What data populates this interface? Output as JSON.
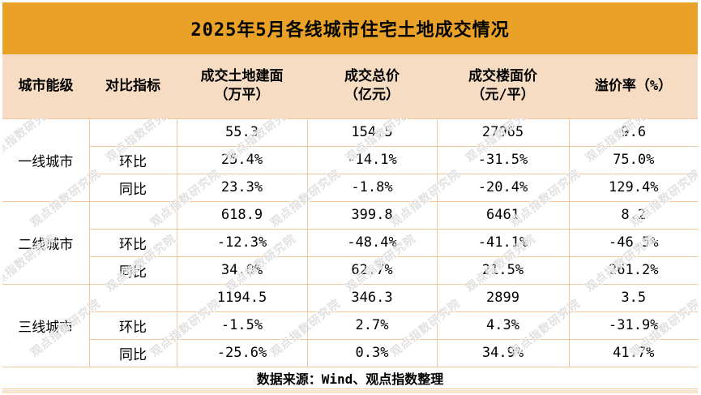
{
  "title": "2025年5月各线城市住宅土地成交情况",
  "colors": {
    "title_bg": "#E9A227",
    "header_bg": "#F6DCC2",
    "grid_line": "#F2C69A",
    "body_bg": "#FFFFFF",
    "text": "#000000",
    "bottom_strip": "#F8E3CC"
  },
  "watermark": {
    "text": "观点指数研究院"
  },
  "table": {
    "columns": [
      "城市能级",
      "对比指标",
      "成交土地建面\n（万平）",
      "成交总价\n（亿元）",
      "成交楼面价\n（元/平）",
      "溢价率（%）"
    ],
    "groups": [
      {
        "city_tier": "一线城市",
        "rows": [
          {
            "indicator": "",
            "values": [
              "55.3",
              "154.5",
              "27965",
              "9.6"
            ]
          },
          {
            "indicator": "环比",
            "values": [
              "25.4%",
              "-14.1%",
              "-31.5%",
              "75.0%"
            ]
          },
          {
            "indicator": "同比",
            "values": [
              "23.3%",
              "-1.8%",
              "-20.4%",
              "129.4%"
            ]
          }
        ]
      },
      {
        "city_tier": "二线城市",
        "rows": [
          {
            "indicator": "",
            "values": [
              "618.9",
              "399.8",
              "6461",
              "8.2"
            ]
          },
          {
            "indicator": "环比",
            "values": [
              "-12.3%",
              "-48.4%",
              "-41.1%",
              "-46.5%"
            ]
          },
          {
            "indicator": "同比",
            "values": [
              "34.0%",
              "62.7%",
              "21.5%",
              "261.2%"
            ]
          }
        ]
      },
      {
        "city_tier": "三线城市",
        "rows": [
          {
            "indicator": "",
            "values": [
              "1194.5",
              "346.3",
              "2899",
              "3.5"
            ]
          },
          {
            "indicator": "环比",
            "values": [
              "-1.5%",
              "2.7%",
              "4.3%",
              "-31.9%"
            ]
          },
          {
            "indicator": "同比",
            "values": [
              "-25.6%",
              "0.3%",
              "34.9%",
              "41.7%"
            ]
          }
        ]
      }
    ]
  },
  "footer": "数据来源：Wind、观点指数整理",
  "chart_data": {
    "type": "table",
    "title": "2025年5月各线城市住宅土地成交情况",
    "columns": [
      "城市能级",
      "对比指标",
      "成交土地建面（万平）",
      "成交总价（亿元）",
      "成交楼面价（元/平）",
      "溢价率（%）"
    ],
    "rows": [
      [
        "一线城市",
        "",
        "55.3",
        "154.5",
        "27965",
        "9.6"
      ],
      [
        "一线城市",
        "环比",
        "25.4%",
        "-14.1%",
        "-31.5%",
        "75.0%"
      ],
      [
        "一线城市",
        "同比",
        "23.3%",
        "-1.8%",
        "-20.4%",
        "129.4%"
      ],
      [
        "二线城市",
        "",
        "618.9",
        "399.8",
        "6461",
        "8.2"
      ],
      [
        "二线城市",
        "环比",
        "-12.3%",
        "-48.4%",
        "-41.1%",
        "-46.5%"
      ],
      [
        "二线城市",
        "同比",
        "34.0%",
        "62.7%",
        "21.5%",
        "261.2%"
      ],
      [
        "三线城市",
        "",
        "1194.5",
        "346.3",
        "2899",
        "3.5"
      ],
      [
        "三线城市",
        "环比",
        "-1.5%",
        "2.7%",
        "4.3%",
        "-31.9%"
      ],
      [
        "三线城市",
        "同比",
        "-25.6%",
        "0.3%",
        "34.9%",
        "41.7%"
      ]
    ],
    "source": "数据来源：Wind、观点指数整理"
  }
}
